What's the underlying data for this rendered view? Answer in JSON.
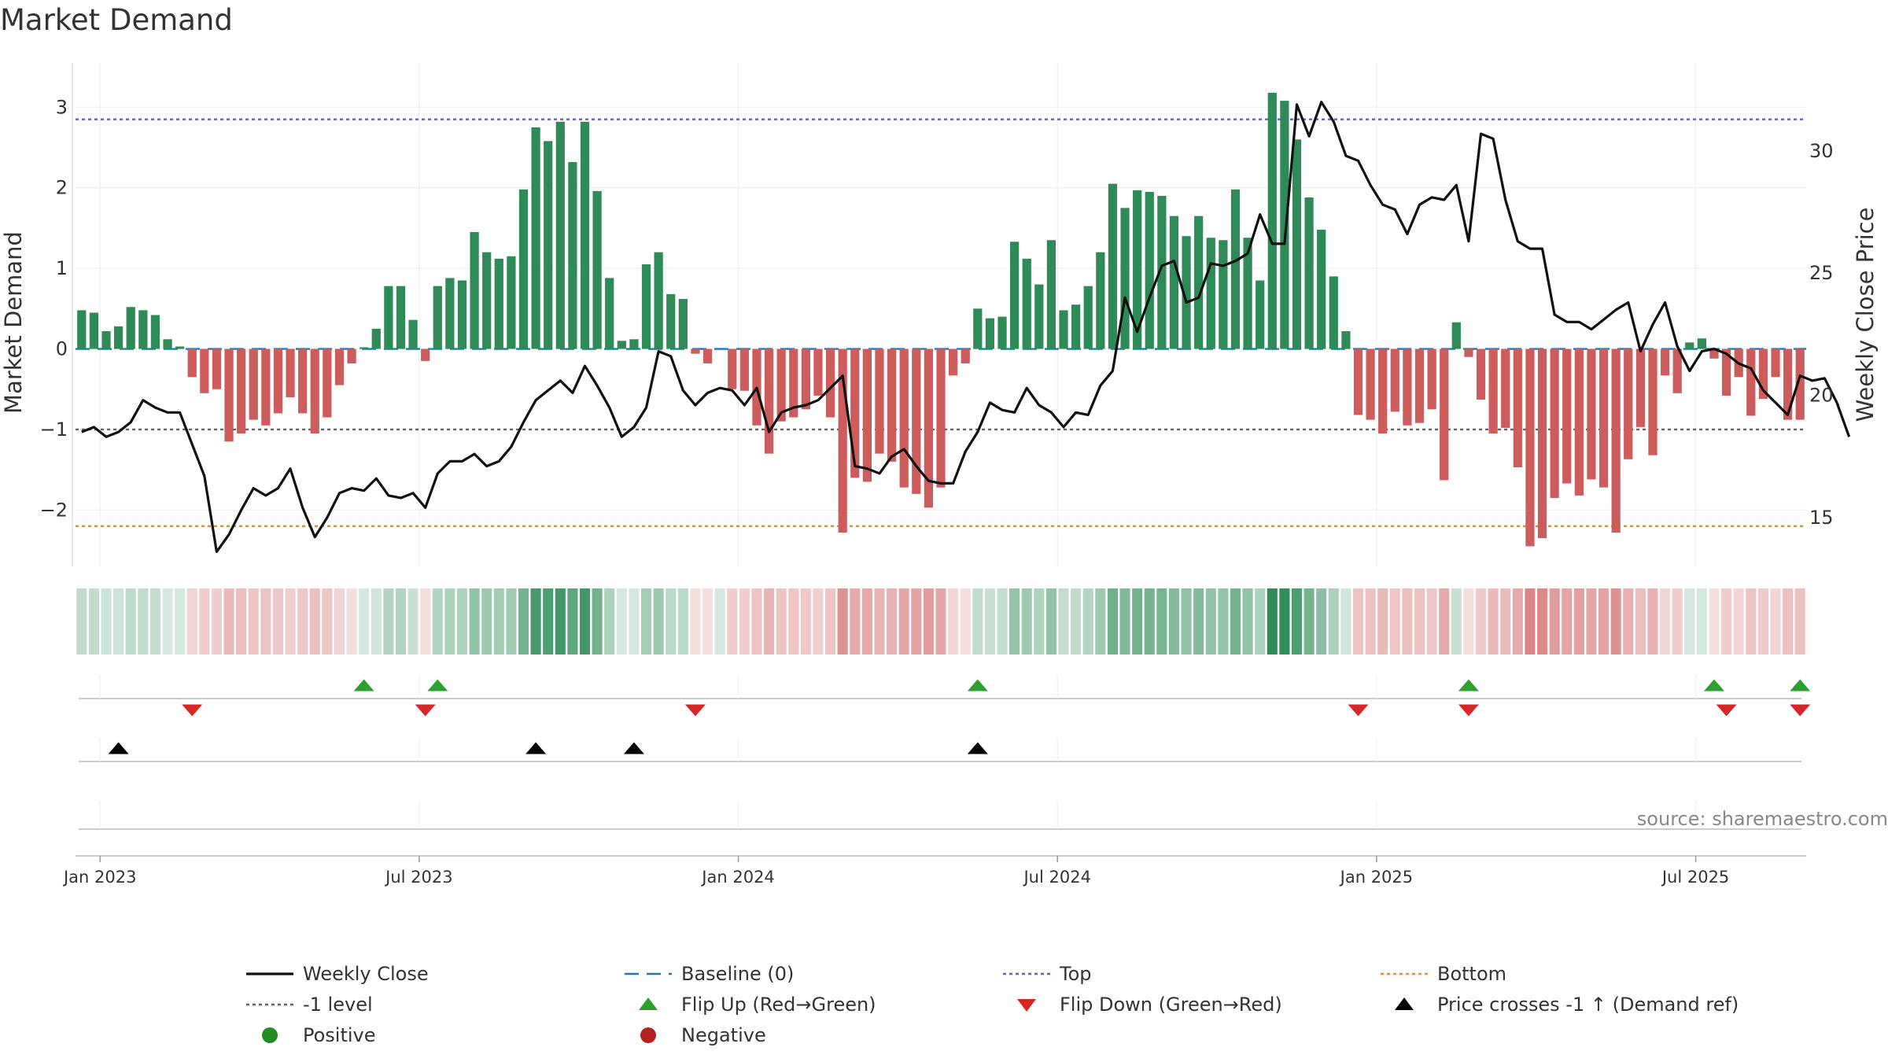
{
  "chart_data": {
    "type": "bar",
    "title": "Market Demand",
    "ylabel": "Market Demand",
    "y2label": "Weekly Close Price",
    "ylim": [
      -2.7,
      3.55
    ],
    "y2lim": [
      13.0,
      33.6
    ],
    "yticks": [
      -2,
      -1,
      0,
      1,
      2,
      3
    ],
    "y2ticks": [
      15,
      20,
      25,
      30
    ],
    "reference_lines": {
      "top": 2.85,
      "bottom": -2.2,
      "level": -1,
      "baseline": 0
    },
    "date_ticks": [
      "Jan 2023",
      "Jul 2023",
      "Jan 2024",
      "Jul 2024",
      "Jan 2025",
      "Jul 2025"
    ],
    "date_tick_weeks": [
      2,
      28,
      54,
      80,
      106,
      132
    ],
    "demand": [
      0.48,
      0.45,
      0.22,
      0.28,
      0.52,
      0.48,
      0.42,
      0.12,
      0.03,
      -0.35,
      -0.55,
      -0.5,
      -1.15,
      -1.05,
      -0.88,
      -0.95,
      -0.8,
      -0.6,
      -0.8,
      -1.05,
      -0.85,
      -0.45,
      -0.18,
      0.02,
      0.25,
      0.78,
      0.78,
      0.36,
      -0.15,
      0.78,
      0.88,
      0.85,
      1.45,
      1.2,
      1.12,
      1.15,
      1.98,
      2.75,
      2.58,
      2.82,
      2.32,
      2.82,
      1.96,
      0.88,
      0.1,
      0.12,
      1.05,
      1.2,
      0.68,
      0.62,
      -0.06,
      -0.18,
      0.0,
      -0.5,
      -0.52,
      -0.95,
      -1.3,
      -0.9,
      -0.85,
      -0.75,
      -0.58,
      -0.85,
      -2.28,
      -1.6,
      -1.65,
      -1.3,
      -1.4,
      -1.72,
      -1.8,
      -1.97,
      -1.72,
      -0.33,
      -0.18,
      0.5,
      0.38,
      0.4,
      1.33,
      1.12,
      0.8,
      1.35,
      0.48,
      0.55,
      0.78,
      1.2,
      2.05,
      1.75,
      1.97,
      1.95,
      1.9,
      1.65,
      1.4,
      1.65,
      1.38,
      1.35,
      1.98,
      1.38,
      0.85,
      3.18,
      3.08,
      2.6,
      1.88,
      1.48,
      0.9,
      0.22,
      -0.82,
      -0.88,
      -1.05,
      -0.78,
      -0.95,
      -0.92,
      -0.75,
      -1.63,
      0.33,
      -0.1,
      -0.63,
      -1.05,
      -0.98,
      -1.47,
      -2.45,
      -2.35,
      -1.85,
      -1.67,
      -1.82,
      -1.62,
      -1.72,
      -2.28,
      -1.37,
      -0.97,
      -1.32,
      -0.33,
      -0.55,
      0.08,
      0.13,
      -0.12,
      -0.58,
      -0.35,
      -0.83,
      -0.62,
      -0.35,
      -0.88,
      -0.88
    ],
    "price": [
      18.5,
      18.7,
      18.3,
      18.5,
      18.9,
      19.8,
      19.5,
      19.3,
      19.3,
      18.0,
      16.7,
      13.6,
      14.3,
      15.3,
      16.2,
      15.9,
      16.2,
      17.0,
      15.4,
      14.2,
      15.0,
      16.0,
      16.2,
      16.1,
      16.6,
      15.9,
      15.8,
      16.0,
      15.4,
      16.8,
      17.3,
      17.3,
      17.6,
      17.1,
      17.3,
      17.9,
      18.9,
      19.8,
      20.2,
      20.6,
      20.1,
      21.2,
      20.4,
      19.5,
      18.3,
      18.7,
      19.5,
      21.8,
      21.6,
      20.2,
      19.6,
      20.1,
      20.3,
      20.2,
      19.6,
      20.3,
      18.5,
      19.3,
      19.5,
      19.6,
      19.8,
      20.3,
      20.8,
      17.1,
      17.0,
      16.8,
      17.5,
      17.8,
      17.1,
      16.5,
      16.4,
      16.4,
      17.7,
      18.5,
      19.7,
      19.4,
      19.3,
      20.3,
      19.6,
      19.3,
      18.7,
      19.3,
      19.2,
      20.4,
      21.0,
      24.0,
      22.6,
      24.0,
      25.3,
      25.5,
      23.8,
      24.0,
      25.4,
      25.3,
      25.5,
      25.8,
      27.4,
      26.2,
      26.2,
      31.9,
      30.6,
      32.0,
      31.2,
      29.8,
      29.6,
      28.6,
      27.8,
      27.6,
      26.6,
      27.8,
      28.1,
      28.0,
      28.6,
      26.3,
      30.7,
      30.5,
      28.0,
      26.3,
      26.0,
      26.0,
      23.3,
      23.0,
      23.0,
      22.7,
      23.1,
      23.5,
      23.8,
      21.8,
      22.9,
      23.8,
      22.0,
      21.0,
      21.8,
      21.9,
      21.7,
      21.3,
      21.1,
      20.2,
      19.7,
      19.2,
      20.8,
      20.6,
      20.7,
      19.7,
      18.3
    ],
    "heatmap_intensity": [
      0.3,
      0.29,
      0.23,
      0.24,
      0.31,
      0.3,
      0.28,
      0.2,
      0.2,
      0.27,
      0.31,
      0.3,
      0.42,
      0.39,
      0.36,
      0.37,
      0.34,
      0.3,
      0.34,
      0.39,
      0.35,
      0.27,
      0.2,
      0.2,
      0.22,
      0.36,
      0.36,
      0.26,
      0.2,
      0.36,
      0.39,
      0.38,
      0.52,
      0.46,
      0.44,
      0.45,
      0.66,
      0.88,
      0.84,
      0.9,
      0.77,
      0.9,
      0.66,
      0.39,
      0.2,
      0.2,
      0.43,
      0.46,
      0.33,
      0.32,
      0.2,
      0.2,
      0.2,
      0.3,
      0.3,
      0.37,
      0.45,
      0.36,
      0.35,
      0.33,
      0.3,
      0.35,
      0.66,
      0.51,
      0.52,
      0.45,
      0.47,
      0.54,
      0.56,
      0.6,
      0.54,
      0.26,
      0.2,
      0.3,
      0.27,
      0.28,
      0.51,
      0.46,
      0.38,
      0.52,
      0.29,
      0.3,
      0.36,
      0.46,
      0.68,
      0.61,
      0.66,
      0.66,
      0.64,
      0.59,
      0.53,
      0.59,
      0.52,
      0.51,
      0.66,
      0.52,
      0.39,
      1.0,
      0.97,
      0.84,
      0.66,
      0.55,
      0.4,
      0.22,
      0.36,
      0.38,
      0.42,
      0.35,
      0.39,
      0.38,
      0.34,
      0.52,
      0.26,
      0.2,
      0.32,
      0.42,
      0.4,
      0.52,
      0.74,
      0.72,
      0.6,
      0.55,
      0.59,
      0.54,
      0.56,
      0.66,
      0.48,
      0.39,
      0.47,
      0.26,
      0.31,
      0.2,
      0.2,
      0.2,
      0.31,
      0.26,
      0.37,
      0.32,
      0.26,
      0.38,
      0.38
    ],
    "flip_up_weeks": [
      23,
      29,
      73,
      113,
      133,
      140
    ],
    "flip_down_weeks": [
      9,
      28,
      50,
      104,
      113,
      134,
      140
    ],
    "price_cross_up_weeks": [
      3,
      37,
      45,
      73
    ],
    "colors": {
      "positive": "#2e8b57",
      "negative": "#cd5c5c",
      "price": "#111111",
      "top": "#6a5acd",
      "bottom": "#ee8822",
      "level": "#666666",
      "baseline": "#1f77b4",
      "flip_up": "#2ca02c",
      "flip_down": "#d62728",
      "cross": "#000000",
      "positive_dot": "#228b22",
      "negative_dot": "#b22222"
    },
    "legend": [
      {
        "label": "Weekly Close",
        "kind": "line-solid"
      },
      {
        "label": "Baseline (0)",
        "kind": "line-dash"
      },
      {
        "label": "Top",
        "kind": "line-dot-top"
      },
      {
        "label": "Bottom",
        "kind": "line-dot-bottom"
      },
      {
        "label": "-1 level",
        "kind": "line-dot-level"
      },
      {
        "label": "Flip Up (Red→Green)",
        "kind": "tri-up-green"
      },
      {
        "label": "Flip Down (Green→Red)",
        "kind": "tri-down-red"
      },
      {
        "label": "Price crosses -1 ↑ (Demand ref)",
        "kind": "tri-up-black"
      },
      {
        "label": "Positive",
        "kind": "dot-green"
      },
      {
        "label": "Negative",
        "kind": "dot-red"
      }
    ],
    "source": "source: sharemaestro.com"
  }
}
